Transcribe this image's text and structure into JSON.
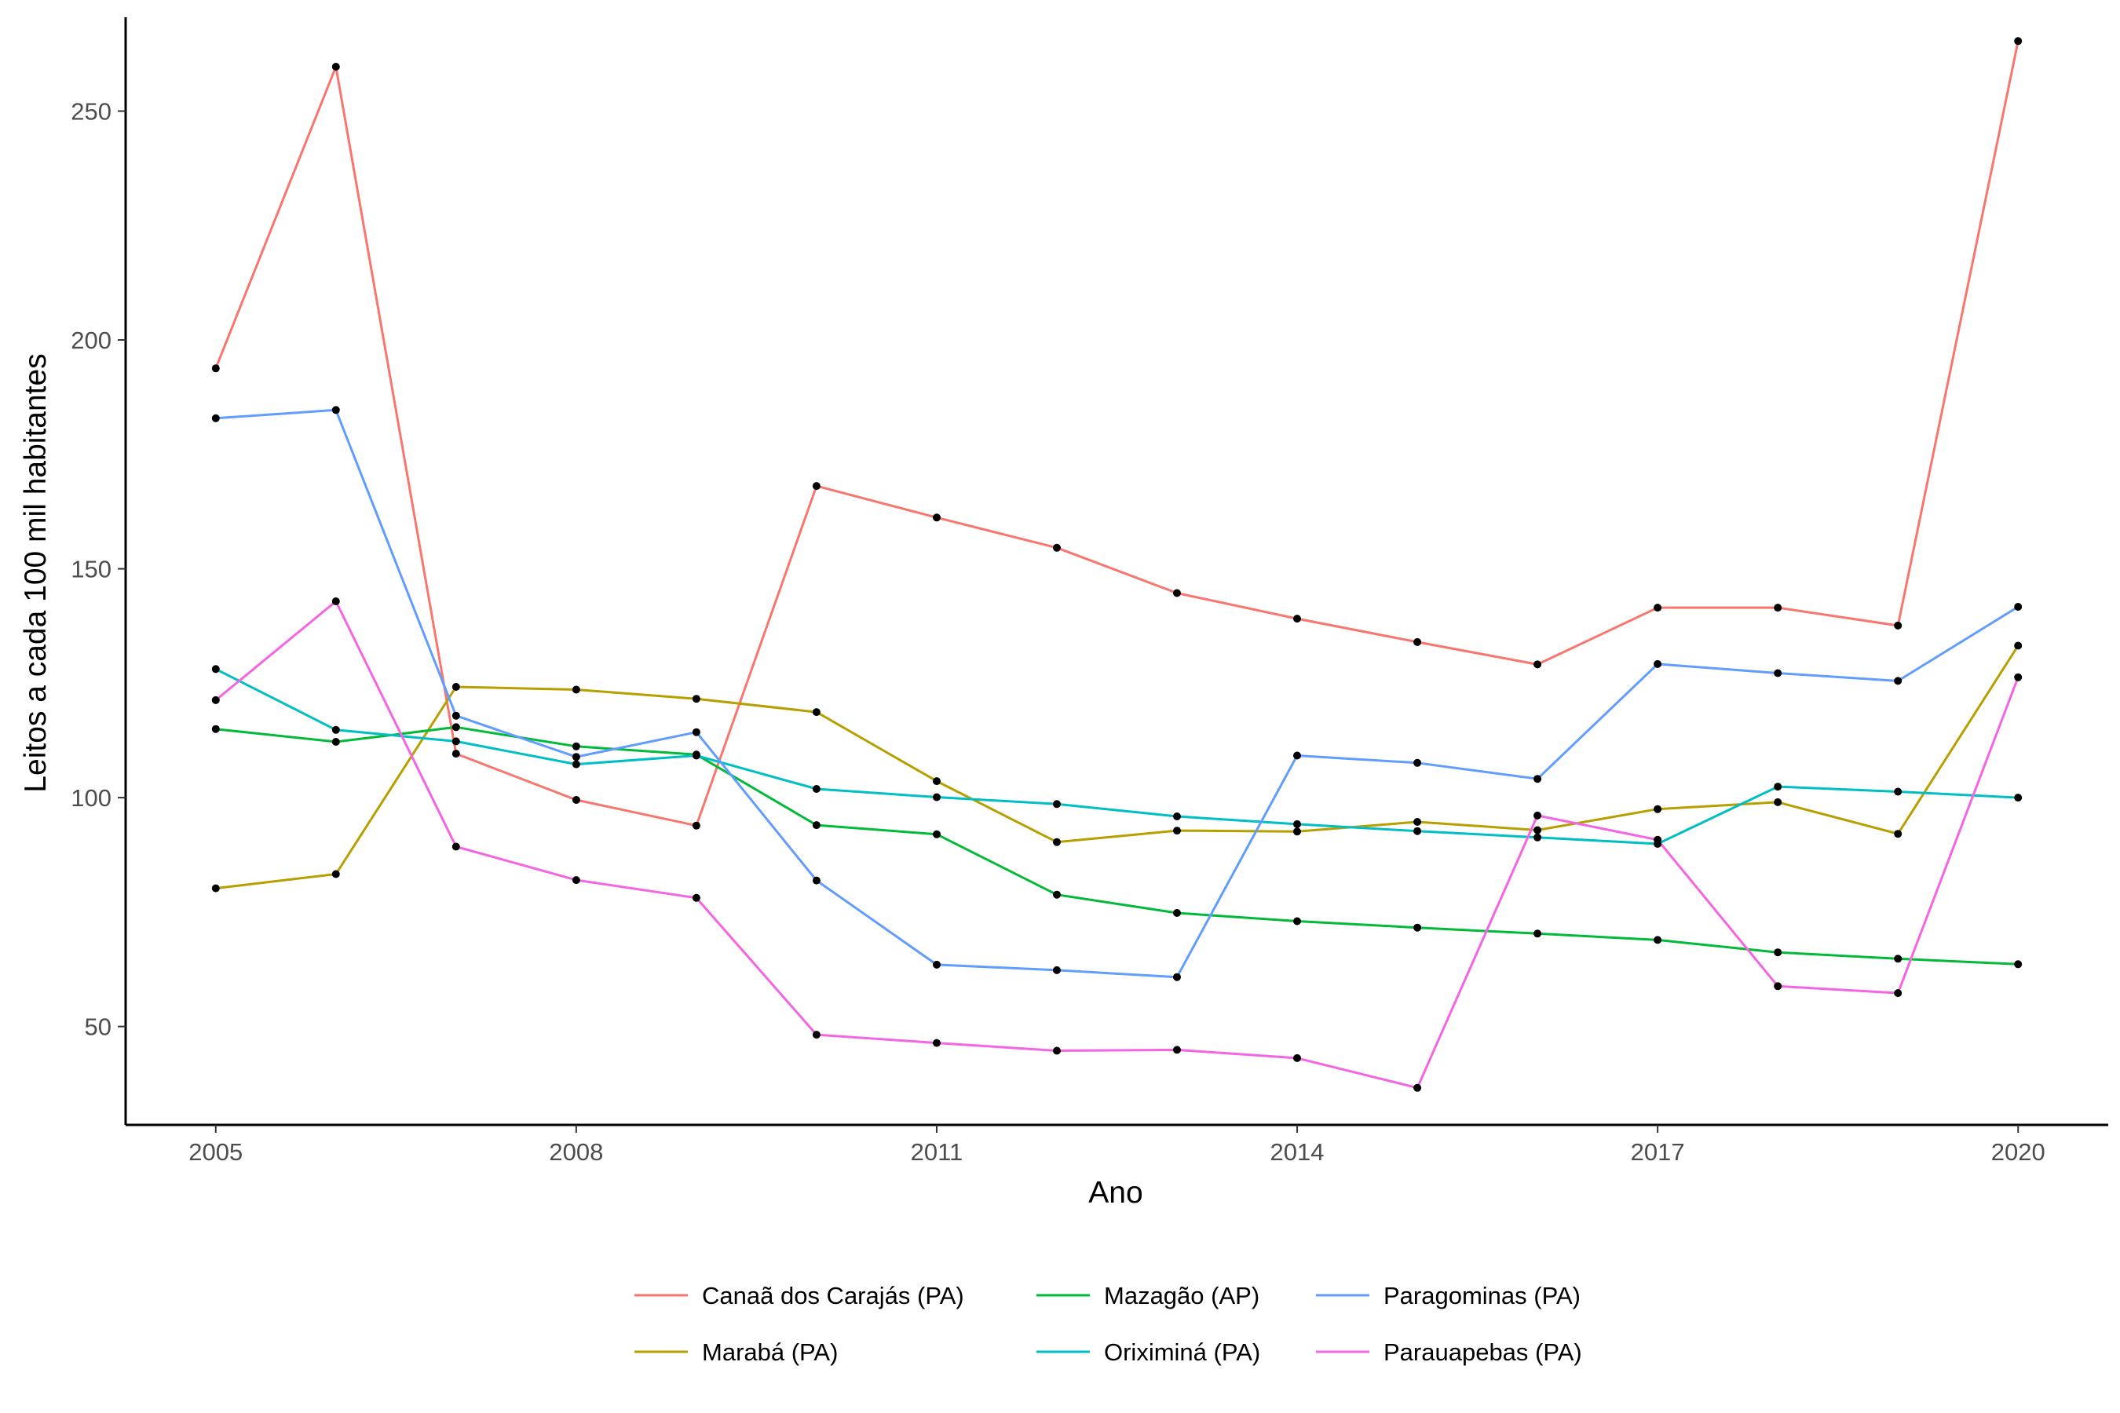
{
  "chart_data": {
    "type": "line",
    "title": "",
    "xlabel": "Ano",
    "ylabel": "Leitos a cada 100 mil habitantes",
    "xlim": [
      2004.25,
      2020.75
    ],
    "ylim": [
      28.5,
      270.5
    ],
    "xticks": [
      2005,
      2008,
      2011,
      2014,
      2017,
      2020
    ],
    "yticks": [
      50,
      100,
      150,
      200,
      250
    ],
    "xtick_labels": [
      "2005",
      "2008",
      "2011",
      "2014",
      "2017",
      "2020"
    ],
    "ytick_labels": [
      "50",
      "100",
      "150",
      "200",
      "250"
    ],
    "grid": false,
    "legend_position": "bottom",
    "x": [
      2005,
      2006,
      2007,
      2008,
      2009,
      2010,
      2011,
      2012,
      2013,
      2014,
      2015,
      2016,
      2017,
      2018,
      2019,
      2020
    ],
    "series": [
      {
        "name": "Canaã dos Carajás (PA)",
        "color": "#F8766D",
        "values": [
          193.8,
          259.7,
          109.6,
          99.5,
          93.9,
          168.1,
          161.2,
          154.6,
          144.7,
          139.1,
          134.0,
          129.1,
          141.5,
          141.5,
          137.6,
          265.3
        ]
      },
      {
        "name": "Marabá (PA)",
        "color": "#B79F00",
        "values": [
          80.2,
          83.3,
          124.2,
          123.6,
          121.6,
          118.7,
          103.6,
          90.3,
          92.8,
          92.6,
          94.7,
          92.9,
          97.5,
          99.0,
          92.1,
          133.2
        ]
      },
      {
        "name": "Mazagão (AP)",
        "color": "#00BA38",
        "values": [
          115.0,
          112.2,
          115.4,
          111.2,
          109.4,
          94.0,
          92.0,
          78.8,
          74.8,
          73.0,
          71.6,
          70.3,
          68.9,
          66.2,
          64.8,
          63.6
        ]
      },
      {
        "name": "Oriximiná (PA)",
        "color": "#00BFC4",
        "values": [
          128.1,
          114.8,
          112.3,
          107.3,
          109.2,
          101.9,
          100.1,
          98.6,
          95.9,
          94.2,
          92.7,
          91.3,
          89.9,
          102.4,
          101.3,
          100.0
        ]
      },
      {
        "name": "Paragominas (PA)",
        "color": "#619CFF",
        "values": [
          182.9,
          184.7,
          117.9,
          108.9,
          114.3,
          81.9,
          63.5,
          62.3,
          60.8,
          109.2,
          107.6,
          104.1,
          129.2,
          127.2,
          125.5,
          141.7
        ]
      },
      {
        "name": "Parauapebas (PA)",
        "color": "#F564E3",
        "values": [
          121.3,
          142.9,
          89.3,
          82.0,
          78.1,
          48.2,
          46.4,
          44.7,
          44.9,
          43.1,
          36.6,
          96.1,
          90.8,
          58.8,
          57.3,
          126.3
        ]
      }
    ]
  }
}
